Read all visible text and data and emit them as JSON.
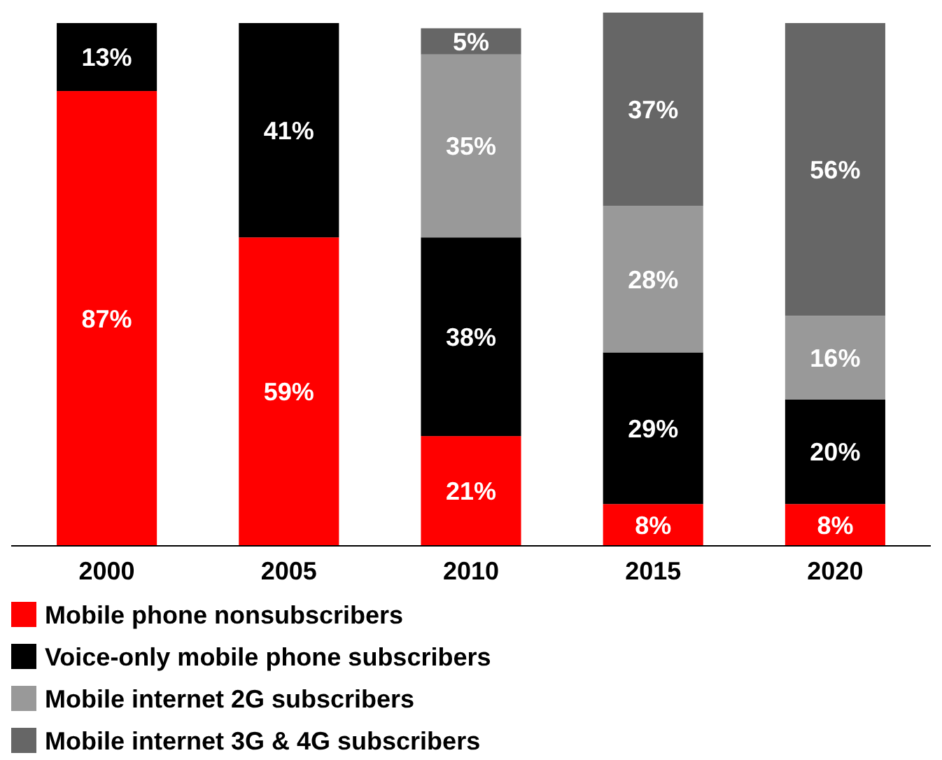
{
  "chart_data": {
    "type": "bar",
    "stacked": true,
    "categories": [
      "2000",
      "2005",
      "2010",
      "2015",
      "2020"
    ],
    "series": [
      {
        "name": "Mobile phone nonsubscribers",
        "color": "#ff0000",
        "values": [
          87,
          59,
          21,
          8,
          8
        ],
        "value_labels": [
          "87%",
          "59%",
          "21%",
          "8%",
          "8%"
        ]
      },
      {
        "name": "Voice-only mobile phone subscribers",
        "color": "#000000",
        "values": [
          13,
          41,
          38,
          29,
          20
        ],
        "value_labels": [
          "13%",
          "41%",
          "38%",
          "29%",
          "20%"
        ]
      },
      {
        "name": "Mobile internet 2G subscribers",
        "color": "#999999",
        "values": [
          null,
          null,
          35,
          28,
          16
        ],
        "value_labels": [
          null,
          null,
          "35%",
          "28%",
          "16%"
        ]
      },
      {
        "name": "Mobile internet 3G & 4G subscribers",
        "color": "#666666",
        "values": [
          null,
          null,
          5,
          37,
          56
        ],
        "value_labels": [
          null,
          null,
          "5%",
          "37%",
          "56%"
        ]
      }
    ],
    "legend": "bottom"
  }
}
